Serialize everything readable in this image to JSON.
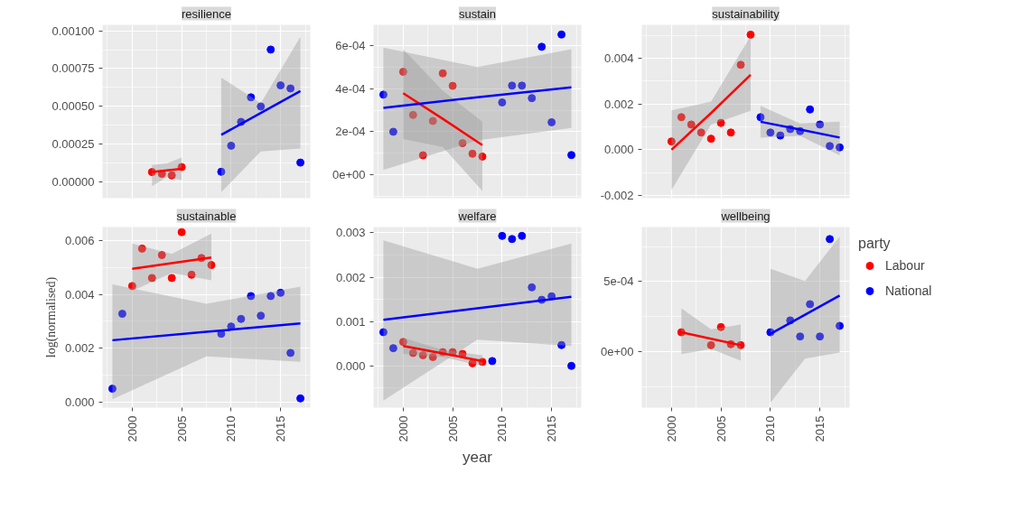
{
  "chart_data": [
    {
      "type": "scatter",
      "title": "resilience",
      "xlim": [
        1997,
        2018
      ],
      "xticks": [
        2000,
        2005,
        2010,
        2015
      ],
      "ylim": [
        -0.00011,
        0.00104
      ],
      "yticks": [
        {
          "value": 0,
          "label": "0.00000"
        },
        {
          "value": 0.00025,
          "label": "0.00025"
        },
        {
          "value": 0.0005,
          "label": "0.00050"
        },
        {
          "value": 0.00075,
          "label": "0.00075"
        },
        {
          "value": 0.001,
          "label": "0.00100"
        }
      ],
      "grid": true,
      "tick_labels": "y",
      "marker": "circle",
      "series": [
        {
          "color": "#ff0000",
          "x": [
            2002,
            2003,
            2004,
            2005
          ],
          "values": [
            6.3e-05,
            5.1e-05,
            4.1e-05,
            9.6e-05
          ]
        },
        {
          "color": "#0000ff",
          "x": [
            2009,
            2010,
            2011,
            2012,
            2013,
            2014,
            2015,
            2016,
            2017
          ],
          "values": [
            6.5e-05,
            0.000238,
            0.000396,
            0.000559,
            0.000498,
            0.000876,
            0.000638,
            0.000618,
            0.000126
          ]
        },
        {
          "type": "line",
          "marker": "none",
          "color": "#ff0000",
          "x": [
            2002,
            2003.5,
            2005
          ],
          "values": [
            6.3e-05,
            7.4e-05,
            8.5e-05
          ],
          "lower": [
            -3e-05,
            3e-05,
            1e-05
          ],
          "upper": [
            0.00011,
            0.00012,
            0.00016
          ]
        },
        {
          "type": "line",
          "marker": "none",
          "color": "#0000ff",
          "x": [
            2009,
            2013,
            2017
          ],
          "values": [
            0.00031,
            0.000455,
            0.0006
          ],
          "lower": [
            -7e-05,
            0.0002,
            0.00022
          ],
          "upper": [
            0.00069,
            0.00052,
            0.00096
          ]
        }
      ]
    },
    {
      "type": "scatter",
      "title": "sustain",
      "xlim": [
        1997,
        2018
      ],
      "xticks": [
        2000,
        2005,
        2010,
        2015
      ],
      "ylim": [
        -0.000108,
        0.000696
      ],
      "yticks": [
        {
          "value": 0,
          "label": "0e+00"
        },
        {
          "value": 0.0002,
          "label": "2e-04"
        },
        {
          "value": 0.0004,
          "label": "4e-04"
        },
        {
          "value": 0.0006,
          "label": "6e-04"
        }
      ],
      "grid": true,
      "tick_labels": "y",
      "marker": "circle",
      "series": [
        {
          "color": "#ff0000",
          "x": [
            2000,
            2001,
            2002,
            2003,
            2004,
            2005,
            2006,
            2007,
            2008
          ],
          "values": [
            0.000478,
            0.000278,
            9.1e-05,
            0.00025,
            0.000471,
            0.000413,
            0.000147,
            9.8e-05,
            8.5e-05
          ]
        },
        {
          "color": "#0000ff",
          "x": [
            1998,
            1999,
            2010,
            2011,
            2012,
            2013,
            2014,
            2015,
            2016,
            2017
          ],
          "values": [
            0.000372,
            0.0002,
            0.000336,
            0.000414,
            0.000414,
            0.000356,
            0.000594,
            0.000244,
            0.000651,
            9.2e-05
          ]
        },
        {
          "type": "line",
          "marker": "none",
          "color": "#ff0000",
          "x": [
            2000,
            2004,
            2008
          ],
          "values": [
            0.000379,
            0.00026,
            0.000138
          ],
          "lower": [
            0.000166,
            0.00013,
            -7.5e-05
          ],
          "upper": [
            0.000583,
            0.00039,
            0.000247
          ]
        },
        {
          "type": "line",
          "marker": "none",
          "color": "#0000ff",
          "x": [
            1998,
            2007.5,
            2017
          ],
          "values": [
            0.000311,
            0.00036,
            0.000406
          ],
          "lower": [
            2.3e-05,
            0.00016,
            0.000218
          ],
          "upper": [
            0.00059,
            0.0005,
            0.000583
          ]
        }
      ]
    },
    {
      "type": "scatter",
      "title": "sustainability",
      "xlim": [
        1997,
        2018
      ],
      "xticks": [
        2000,
        2005,
        2010,
        2015
      ],
      "ylim": [
        -0.00212,
        0.00546
      ],
      "yticks": [
        {
          "value": -0.002,
          "label": "-0.002"
        },
        {
          "value": 0,
          "label": "0.000"
        },
        {
          "value": 0.002,
          "label": "0.002"
        },
        {
          "value": 0.004,
          "label": "0.004"
        }
      ],
      "grid": true,
      "tick_labels": "y",
      "marker": "circle",
      "series": [
        {
          "color": "#ff0000",
          "x": [
            2000,
            2001,
            2002,
            2003,
            2004,
            2005,
            2006,
            2007,
            2008
          ],
          "values": [
            0.00036,
            0.00142,
            0.0011,
            0.00075,
            0.00048,
            0.00117,
            0.00075,
            0.00371,
            0.00503
          ]
        },
        {
          "color": "#0000ff",
          "x": [
            2009,
            2010,
            2011,
            2012,
            2013,
            2014,
            2015,
            2016,
            2017
          ],
          "values": [
            0.00142,
            0.00075,
            0.00062,
            0.0009,
            0.00081,
            0.00176,
            0.0011,
            0.00016,
            0.0001
          ]
        },
        {
          "type": "line",
          "marker": "none",
          "color": "#ff0000",
          "x": [
            2000,
            2004,
            2008
          ],
          "values": [
            0.0,
            0.0016,
            0.00327
          ],
          "lower": [
            -0.00176,
            0.0011,
            0.0017
          ],
          "upper": [
            0.00172,
            0.0021,
            0.00497
          ]
        },
        {
          "type": "line",
          "marker": "none",
          "color": "#0000ff",
          "x": [
            2009,
            2013,
            2017
          ],
          "values": [
            0.00122,
            0.00088,
            0.00053
          ],
          "lower": [
            0.00053,
            0.0006,
            -0.00024
          ],
          "upper": [
            0.00192,
            0.00115,
            0.00123
          ]
        }
      ]
    },
    {
      "type": "scatter",
      "title": "sustainable",
      "ylabel": "log(normalised)",
      "xlim": [
        1997,
        2018
      ],
      "xticks": [
        2000,
        2005,
        2010,
        2015
      ],
      "ylim": [
        -0.0002,
        0.0065
      ],
      "yticks": [
        {
          "value": 0,
          "label": "0.000"
        },
        {
          "value": 0.002,
          "label": "0.002"
        },
        {
          "value": 0.004,
          "label": "0.004"
        },
        {
          "value": 0.006,
          "label": "0.006"
        }
      ],
      "grid": true,
      "marker": "circle",
      "series": [
        {
          "color": "#ff0000",
          "x": [
            2000,
            2001,
            2002,
            2003,
            2004,
            2005,
            2006,
            2007,
            2008
          ],
          "values": [
            0.00431,
            0.0057,
            0.00461,
            0.00546,
            0.00461,
            0.00631,
            0.00473,
            0.00535,
            0.00509
          ]
        },
        {
          "color": "#0000ff",
          "x": [
            1998,
            1999,
            2009,
            2010,
            2011,
            2012,
            2013,
            2014,
            2015,
            2016,
            2017
          ],
          "values": [
            0.0005,
            0.00328,
            0.00254,
            0.00281,
            0.00309,
            0.00394,
            0.00321,
            0.00394,
            0.00406,
            0.00183,
            0.00014
          ]
        },
        {
          "type": "line",
          "marker": "none",
          "color": "#ff0000",
          "x": [
            2000,
            2004,
            2008
          ],
          "values": [
            0.00495,
            0.00516,
            0.00537
          ],
          "lower": [
            0.00413,
            0.0048,
            0.00452
          ],
          "upper": [
            0.00589,
            0.0055,
            0.00626
          ]
        },
        {
          "type": "line",
          "marker": "none",
          "color": "#0000ff",
          "x": [
            1998,
            2007.5,
            2017
          ],
          "values": [
            0.0023,
            0.00261,
            0.00292
          ],
          "lower": [
            0.00011,
            0.0017,
            0.0015
          ],
          "upper": [
            0.00437,
            0.00365,
            0.00429
          ]
        }
      ]
    },
    {
      "type": "scatter",
      "title": "welfare",
      "xlabel": "year",
      "xlim": [
        1997,
        2018
      ],
      "xticks": [
        2000,
        2005,
        2010,
        2015
      ],
      "ylim": [
        -0.00094,
        0.00313
      ],
      "yticks": [
        {
          "value": 0,
          "label": "0.000"
        },
        {
          "value": 0.001,
          "label": "0.001"
        },
        {
          "value": 0.002,
          "label": "0.002"
        },
        {
          "value": 0.003,
          "label": "0.003"
        }
      ],
      "grid": true,
      "marker": "circle",
      "series": [
        {
          "color": "#ff0000",
          "x": [
            2000,
            2001,
            2002,
            2003,
            2004,
            2005,
            2006,
            2007,
            2008
          ],
          "values": [
            0.00054,
            0.00029,
            0.00024,
            0.0002,
            0.00031,
            0.00031,
            0.00027,
            6e-05,
            9e-05
          ]
        },
        {
          "color": "#0000ff",
          "x": [
            1998,
            1999,
            2009,
            2010,
            2011,
            2012,
            2013,
            2014,
            2015,
            2016,
            2017
          ],
          "values": [
            0.00076,
            0.0004,
            0.00011,
            0.00293,
            0.00286,
            0.00293,
            0.00177,
            0.00149,
            0.00157,
            0.00047,
            0.0
          ]
        },
        {
          "type": "line",
          "marker": "none",
          "color": "#ff0000",
          "x": [
            2000,
            2004,
            2008
          ],
          "values": [
            0.00045,
            0.00028,
            0.00011
          ],
          "lower": [
            0.00027,
            0.0002,
            0.0
          ],
          "upper": [
            0.00063,
            0.00036,
            0.00024
          ]
        },
        {
          "type": "line",
          "marker": "none",
          "color": "#0000ff",
          "x": [
            1998,
            2007.5,
            2017
          ],
          "values": [
            0.00104,
            0.0013,
            0.00156
          ],
          "lower": [
            -0.00078,
            0.00059,
            0.00045
          ],
          "upper": [
            0.00283,
            0.00219,
            0.00276
          ]
        }
      ]
    },
    {
      "type": "scatter",
      "title": "wellbeing",
      "legend_title": "party",
      "legend": "right",
      "xlim": [
        1997,
        2018
      ],
      "xticks": [
        2000,
        2005,
        2010,
        2015
      ],
      "ylim": [
        -0.0004,
        0.00089
      ],
      "yticks": [
        {
          "value": 0,
          "label": "0e+00"
        },
        {
          "value": 0.0005,
          "label": "5e-04"
        }
      ],
      "grid": true,
      "marker": "circle",
      "series": [
        {
          "name": "Labour",
          "color": "#ff0000",
          "x": [
            2001,
            2004,
            2005,
            2006,
            2007
          ],
          "values": [
            0.000138,
            4.6e-05,
            0.000175,
            5.3e-05,
            4.6e-05
          ]
        },
        {
          "name": "National",
          "color": "#0000ff",
          "x": [
            2010,
            2012,
            2013,
            2014,
            2015,
            2016,
            2017
          ],
          "values": [
            0.000138,
            0.000223,
            0.000108,
            0.000339,
            0.000108,
            0.000804,
            0.000184
          ]
        },
        {
          "type": "line",
          "marker": "none",
          "color": "#ff0000",
          "x": [
            2001,
            2004,
            2007
          ],
          "values": [
            0.000138,
            9.2e-05,
            4.6e-05
          ],
          "lower": [
            -1.8e-05,
            2e-05,
            -6.5e-05
          ],
          "upper": [
            0.000309,
            0.00016,
            0.000194
          ]
        },
        {
          "type": "line",
          "marker": "none",
          "color": "#0000ff",
          "x": [
            2010,
            2013.5,
            2017
          ],
          "values": [
            0.000127,
            0.000264,
            0.000401
          ],
          "lower": [
            -0.000364,
            -5e-05,
            -7e-06
          ],
          "upper": [
            0.000592,
            0.000505,
            0.000823
          ]
        }
      ]
    }
  ]
}
